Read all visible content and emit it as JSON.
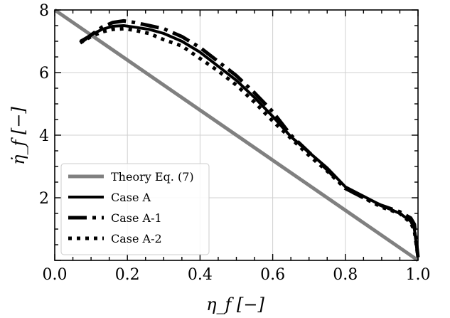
{
  "chart_data": {
    "type": "line",
    "xlabel": "η_f [−]",
    "ylabel": "η̇_f [−]",
    "xlim": [
      0.0,
      1.0
    ],
    "ylim": [
      0.0,
      8.0
    ],
    "x_ticks": [
      "0.0",
      "0.2",
      "0.4",
      "0.6",
      "0.8",
      "1.0"
    ],
    "y_ticks": [
      "2",
      "4",
      "6",
      "8"
    ],
    "y_tick_values": [
      2,
      4,
      6,
      8
    ],
    "x_tick_values": [
      0.0,
      0.2,
      0.4,
      0.6,
      0.8,
      1.0
    ],
    "grid": true,
    "legend_position": "bottom-left",
    "series": [
      {
        "name": "Theory Eq. (7)",
        "color": "#808080",
        "style": "solid-thick",
        "x": [
          0.0,
          1.0
        ],
        "y": [
          8.0,
          0.0
        ]
      },
      {
        "name": "Case A",
        "color": "#000000",
        "style": "solid",
        "x": [
          0.07,
          0.1,
          0.13,
          0.16,
          0.19,
          0.22,
          0.26,
          0.3,
          0.35,
          0.4,
          0.45,
          0.5,
          0.55,
          0.6,
          0.65,
          0.7,
          0.75,
          0.8,
          0.85,
          0.9,
          0.95,
          0.98,
          0.99,
          1.0
        ],
        "y": [
          7.0,
          7.2,
          7.38,
          7.48,
          7.5,
          7.45,
          7.38,
          7.25,
          7.0,
          6.65,
          6.2,
          5.75,
          5.2,
          4.6,
          3.95,
          3.45,
          2.95,
          2.35,
          2.05,
          1.75,
          1.5,
          1.25,
          1.0,
          0.1
        ]
      },
      {
        "name": "Case A-1",
        "color": "#000000",
        "style": "dashdot",
        "x": [
          0.07,
          0.1,
          0.13,
          0.16,
          0.19,
          0.22,
          0.26,
          0.3,
          0.35,
          0.4,
          0.45,
          0.5,
          0.55,
          0.6,
          0.65,
          0.7,
          0.75,
          0.8,
          0.85,
          0.9,
          0.95,
          0.98,
          0.99,
          1.0
        ],
        "y": [
          6.95,
          7.2,
          7.45,
          7.6,
          7.65,
          7.6,
          7.5,
          7.4,
          7.15,
          6.8,
          6.35,
          5.9,
          5.35,
          4.75,
          4.0,
          3.45,
          2.9,
          2.3,
          2.0,
          1.75,
          1.55,
          1.35,
          1.15,
          0.1
        ]
      },
      {
        "name": "Case A-2",
        "color": "#000000",
        "style": "dotted",
        "x": [
          0.07,
          0.1,
          0.13,
          0.16,
          0.19,
          0.22,
          0.26,
          0.3,
          0.35,
          0.4,
          0.45,
          0.5,
          0.55,
          0.6,
          0.65,
          0.7,
          0.75,
          0.8,
          0.85,
          0.9,
          0.95,
          0.98,
          0.99,
          1.0
        ],
        "y": [
          6.95,
          7.15,
          7.3,
          7.38,
          7.4,
          7.35,
          7.25,
          7.05,
          6.85,
          6.45,
          6.05,
          5.6,
          5.05,
          4.45,
          3.9,
          3.35,
          2.85,
          2.3,
          2.0,
          1.7,
          1.5,
          1.2,
          0.95,
          0.1
        ]
      }
    ]
  }
}
